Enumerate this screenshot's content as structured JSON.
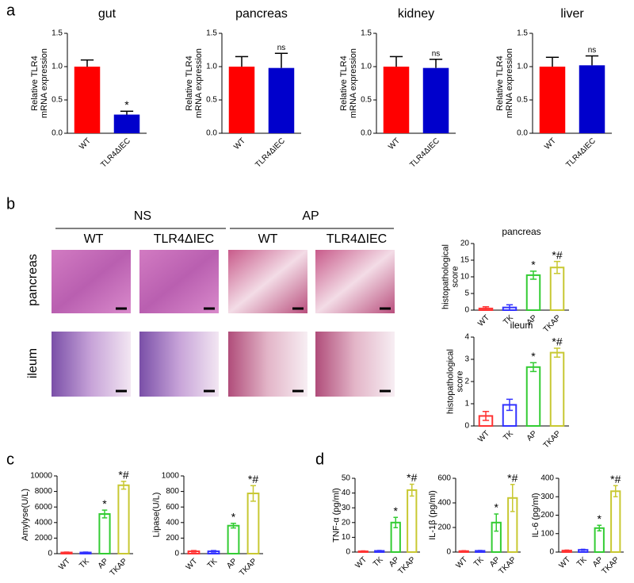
{
  "panels": [
    "a",
    "b",
    "c",
    "d"
  ],
  "histology": {
    "groups": [
      "NS",
      "AP"
    ],
    "columns": [
      "WT",
      "TLR4ΔIEC",
      "WT",
      "TLR4ΔIEC"
    ],
    "rows": [
      "pancreas",
      "ileum"
    ]
  },
  "chart_data": [
    {
      "type": "bar",
      "title": "gut",
      "ylabel": [
        "Relative TLR4",
        "mRNA expression"
      ],
      "categories": [
        "WT",
        "TLR4ΔIEC"
      ],
      "values": [
        1.0,
        0.28
      ],
      "errors": [
        0.1,
        0.05
      ],
      "annotations": [
        null,
        "*"
      ],
      "colors": [
        "#ff0000",
        "#0000cc"
      ],
      "filled": true,
      "ylim": [
        0,
        1.5
      ],
      "yticks": [
        {
          "value": 0,
          "label": "0.0"
        },
        0.5,
        {
          "value": 1,
          "label": "1.0"
        },
        1.5
      ]
    },
    {
      "type": "bar",
      "title": "pancreas",
      "ylabel": [
        "Relative TLR4",
        "mRNA expression"
      ],
      "categories": [
        "WT",
        "TLR4ΔIEC"
      ],
      "values": [
        1.0,
        0.98
      ],
      "errors": [
        0.15,
        0.22
      ],
      "annotations": [
        null,
        "ns"
      ],
      "colors": [
        "#ff0000",
        "#0000cc"
      ],
      "filled": true,
      "ylim": [
        0,
        1.5
      ],
      "yticks": [
        {
          "value": 0,
          "label": "0.0"
        },
        0.5,
        {
          "value": 1,
          "label": "1.0"
        },
        1.5
      ]
    },
    {
      "type": "bar",
      "title": "kidney",
      "ylabel": [
        "Relative TLR4",
        "mRNA expression"
      ],
      "categories": [
        "WT",
        "TLR4ΔIEC"
      ],
      "values": [
        1.0,
        0.98
      ],
      "errors": [
        0.15,
        0.13
      ],
      "annotations": [
        null,
        "ns"
      ],
      "colors": [
        "#ff0000",
        "#0000cc"
      ],
      "filled": true,
      "ylim": [
        0,
        1.5
      ],
      "yticks": [
        {
          "value": 0,
          "label": "0.0"
        },
        0.5,
        {
          "value": 1,
          "label": "1.0"
        },
        1.5
      ]
    },
    {
      "type": "bar",
      "title": "liver",
      "ylabel": [
        "Relative TLR4",
        "mRNA expression"
      ],
      "categories": [
        "WT",
        "TLR4ΔIEC"
      ],
      "values": [
        1.0,
        1.02
      ],
      "errors": [
        0.14,
        0.14
      ],
      "annotations": [
        null,
        "ns"
      ],
      "colors": [
        "#ff0000",
        "#0000cc"
      ],
      "filled": true,
      "ylim": [
        0,
        1.5
      ],
      "yticks": [
        {
          "value": 0,
          "label": "0.0"
        },
        0.5,
        {
          "value": 1,
          "label": "1.0"
        },
        1.5
      ]
    },
    {
      "type": "bar",
      "title": "pancreas",
      "ylabel": [
        "histopathological",
        "score"
      ],
      "categories": [
        "WT",
        "TK",
        "AP",
        "TKAP"
      ],
      "values": [
        0.5,
        0.8,
        10.5,
        12.8
      ],
      "errors": [
        0.5,
        0.8,
        1.2,
        1.8
      ],
      "annotations": [
        null,
        null,
        "*",
        "*#"
      ],
      "colors": [
        "#ff3333",
        "#3333ff",
        "#33cc33",
        "#c8c832"
      ],
      "filled": false,
      "ylim": [
        0,
        20
      ],
      "yticks": [
        0,
        5,
        10,
        15,
        20
      ]
    },
    {
      "type": "bar",
      "title": "ileum",
      "ylabel": [
        "histopathological",
        "score"
      ],
      "categories": [
        "WT",
        "TK",
        "AP",
        "TKAP"
      ],
      "values": [
        0.45,
        0.95,
        2.65,
        3.3
      ],
      "errors": [
        0.2,
        0.25,
        0.2,
        0.2
      ],
      "annotations": [
        null,
        null,
        "*",
        "*#"
      ],
      "colors": [
        "#ff3333",
        "#3333ff",
        "#33cc33",
        "#c8c832"
      ],
      "filled": false,
      "ylim": [
        0,
        4
      ],
      "yticks": [
        0,
        1,
        2,
        3,
        4
      ]
    },
    {
      "type": "bar",
      "ylabel": [
        "Amylyse(U/L)"
      ],
      "categories": [
        "WT",
        "TK",
        "AP",
        "TKAP"
      ],
      "values": [
        150,
        150,
        5100,
        8800
      ],
      "errors": [
        50,
        50,
        500,
        500
      ],
      "annotations": [
        null,
        null,
        "*",
        "*#"
      ],
      "colors": [
        "#ff3333",
        "#3333ff",
        "#33cc33",
        "#c8c832"
      ],
      "filled": false,
      "ylim": [
        0,
        10000
      ],
      "yticks": [
        0,
        2000,
        4000,
        6000,
        8000,
        10000
      ]
    },
    {
      "type": "bar",
      "ylabel": [
        "Lipase(U/L)"
      ],
      "categories": [
        "WT",
        "TK",
        "AP",
        "TKAP"
      ],
      "values": [
        30,
        30,
        360,
        775
      ],
      "errors": [
        10,
        10,
        30,
        100
      ],
      "annotations": [
        null,
        null,
        "*",
        "*#"
      ],
      "colors": [
        "#ff3333",
        "#3333ff",
        "#33cc33",
        "#c8c832"
      ],
      "filled": false,
      "ylim": [
        0,
        1000
      ],
      "yticks": [
        0,
        200,
        400,
        600,
        800,
        1000
      ]
    },
    {
      "type": "bar",
      "ylabel": [
        "TNF-α (pg/ml)"
      ],
      "categories": [
        "WT",
        "TK",
        "AP",
        "TKAP"
      ],
      "values": [
        0.5,
        0.8,
        20,
        42
      ],
      "errors": [
        0.3,
        0.3,
        3.5,
        4
      ],
      "annotations": [
        null,
        null,
        "*",
        "*#"
      ],
      "colors": [
        "#ff3333",
        "#3333ff",
        "#33cc33",
        "#c8c832"
      ],
      "filled": false,
      "ylim": [
        0,
        50
      ],
      "yticks": [
        0,
        10,
        20,
        30,
        40,
        50
      ]
    },
    {
      "type": "bar",
      "ylabel": [
        "IL-1β (pg/ml)"
      ],
      "categories": [
        "WT",
        "TK",
        "AP",
        "TKAP"
      ],
      "values": [
        8,
        10,
        240,
        440
      ],
      "errors": [
        3,
        3,
        70,
        110
      ],
      "annotations": [
        null,
        null,
        "*",
        "*#"
      ],
      "colors": [
        "#ff3333",
        "#3333ff",
        "#33cc33",
        "#c8c832"
      ],
      "filled": false,
      "ylim": [
        0,
        600
      ],
      "yticks": [
        0,
        200,
        400,
        600
      ]
    },
    {
      "type": "bar",
      "ylabel": [
        "IL-6 (pg/ml)"
      ],
      "categories": [
        "WT",
        "TK",
        "AP",
        "TKAP"
      ],
      "values": [
        8,
        12,
        130,
        330
      ],
      "errors": [
        3,
        3,
        15,
        30
      ],
      "annotations": [
        null,
        null,
        "*",
        "*#"
      ],
      "colors": [
        "#ff3333",
        "#3333ff",
        "#33cc33",
        "#c8c832"
      ],
      "filled": false,
      "ylim": [
        0,
        400
      ],
      "yticks": [
        0,
        100,
        200,
        300,
        400
      ]
    }
  ]
}
